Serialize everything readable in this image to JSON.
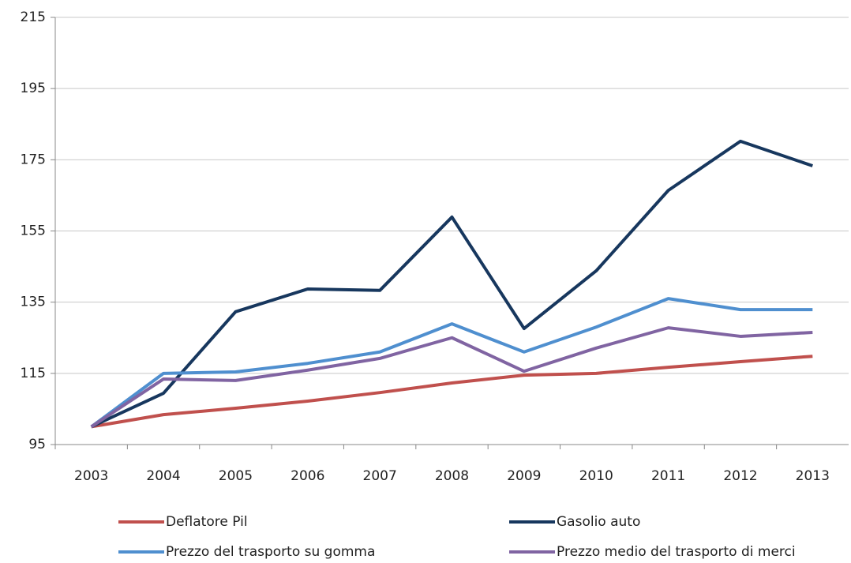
{
  "chart_data": {
    "type": "line",
    "categories": [
      "2003",
      "2004",
      "2005",
      "2006",
      "2007",
      "2008",
      "2009",
      "2010",
      "2011",
      "2012",
      "2013"
    ],
    "series": [
      {
        "name": "Deflatore Pil",
        "color": "#c0504d",
        "values": [
          100,
          103.4,
          105.2,
          107.2,
          109.6,
          112.3,
          114.5,
          115,
          116.7,
          118.3,
          119.8
        ]
      },
      {
        "name": "Gasolio auto",
        "color": "#17375e",
        "values": [
          100,
          109.4,
          132.3,
          138.7,
          138.3,
          158.9,
          127.6,
          143.8,
          166.4,
          180.2,
          173.3
        ]
      },
      {
        "name": "Prezzo del trasporto su gomma",
        "color": "#4f8fcf",
        "values": [
          100,
          115,
          115.4,
          117.8,
          121,
          128.9,
          121,
          128,
          136,
          132.9,
          132.9
        ]
      },
      {
        "name": "Prezzo medio del trasporto di merci",
        "color": "#8064a2",
        "values": [
          100,
          113.4,
          113,
          115.9,
          119.2,
          125,
          115.6,
          122.1,
          127.8,
          125.4,
          126.5
        ]
      }
    ],
    "ylim": [
      95,
      215
    ],
    "yticks": [
      95,
      115,
      135,
      155,
      175,
      195,
      215
    ],
    "grid": true
  }
}
